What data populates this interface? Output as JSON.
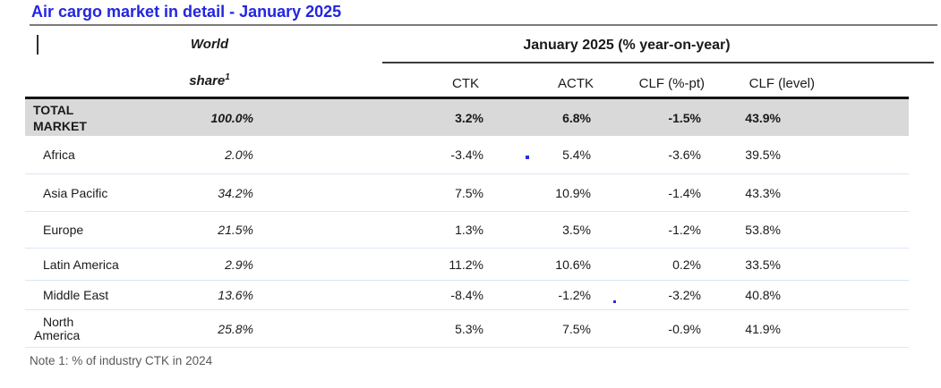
{
  "title": "Air cargo market in detail - January 2025",
  "table": {
    "corner_header": {
      "line1": "World",
      "line2": "share",
      "superscript": "1"
    },
    "group_header": "January 2025 (% year-on-year)",
    "columns": [
      "CTK",
      "ACTK",
      "CLF (%-pt)",
      "CLF (level)"
    ],
    "rows": [
      {
        "region": "TOTAL MARKET",
        "world_share": "100.0%",
        "ctk": "3.2%",
        "actk": "6.8%",
        "clf_pt": "-1.5%",
        "clf_level": "43.9%"
      },
      {
        "region": "Africa",
        "world_share": "2.0%",
        "ctk": "-3.4%",
        "actk": "5.4%",
        "clf_pt": "-3.6%",
        "clf_level": "39.5%"
      },
      {
        "region": "Asia Pacific",
        "world_share": "34.2%",
        "ctk": "7.5%",
        "actk": "10.9%",
        "clf_pt": "-1.4%",
        "clf_level": "43.3%"
      },
      {
        "region": "Europe",
        "world_share": "21.5%",
        "ctk": "1.3%",
        "actk": "3.5%",
        "clf_pt": "-1.2%",
        "clf_level": "53.8%"
      },
      {
        "region": "Latin America",
        "world_share": "2.9%",
        "ctk": "11.2%",
        "actk": "10.6%",
        "clf_pt": "0.2%",
        "clf_level": "33.5%"
      },
      {
        "region": "Middle East",
        "world_share": "13.6%",
        "ctk": "-8.4%",
        "actk": "-1.2%",
        "clf_pt": "-3.2%",
        "clf_level": "40.8%"
      },
      {
        "region": "North America",
        "world_share": "25.8%",
        "ctk": "5.3%",
        "actk": "7.5%",
        "clf_pt": "-0.9%",
        "clf_level": "41.9%"
      }
    ]
  },
  "note": "Note 1: % of industry CTK in 2024",
  "colors": {
    "title_blue": "#2226df",
    "title_rule_gray": "#7b7b7b",
    "total_row_bg": "#d9d9d9",
    "row_separator": "#dce6f1",
    "note_gray": "#595959",
    "artifact_blue": "#2b2be0"
  }
}
